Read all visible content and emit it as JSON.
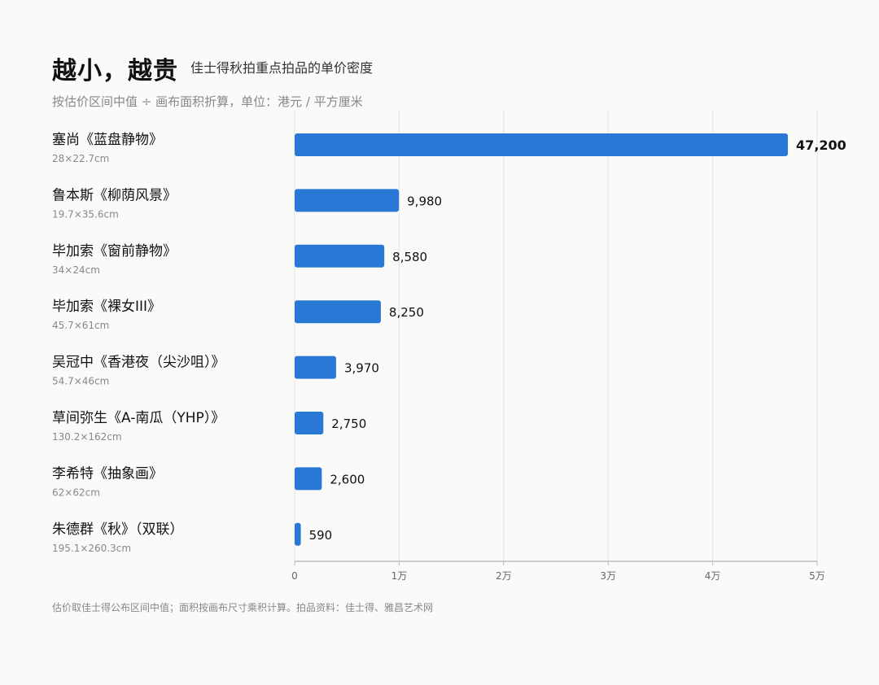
{
  "header": {
    "title": "越小，越贵",
    "subtitle": "佳士得秋拍重点拍品的单价密度",
    "description": "按估价区间中值 ÷ 画布面积折算，单位：港元 / 平方厘米"
  },
  "footnote": "估价取佳士得公布区间中值；面积按画布尺寸乘积计算。拍品资料：佳士得、雅昌艺术网",
  "colors": {
    "bar": "#2a78d6",
    "grid": "#e4e4e2",
    "axis": "#bbbbbb"
  },
  "chart_data": {
    "type": "bar",
    "orientation": "horizontal",
    "categories": [
      "塞尚《蓝盘静物》",
      "鲁本斯《柳荫风景》",
      "毕加索《窗前静物》",
      "毕加索《裸女III》",
      "吴冠中《香港夜（尖沙咀）》",
      "草间弥生《A-南瓜（YHP）》",
      "李希特《抽象画》",
      "朱德群《秋》（双联）"
    ],
    "sizes": [
      "28×22.7cm",
      "19.7×35.6cm",
      "34×24cm",
      "45.7×61cm",
      "54.7×46cm",
      "130.2×162cm",
      "62×62cm",
      "195.1×260.3cm"
    ],
    "values": [
      47200,
      9980,
      8580,
      8250,
      3970,
      2750,
      2600,
      590
    ],
    "value_labels": [
      "47,200",
      "9,980",
      "8,580",
      "8,250",
      "3,970",
      "2,750",
      "2,600",
      "590"
    ],
    "xlim": [
      0,
      50000
    ],
    "xticks": [
      0,
      10000,
      20000,
      30000,
      40000,
      50000
    ],
    "xtick_labels": [
      "0",
      "1万",
      "2万",
      "3万",
      "4万",
      "5万"
    ],
    "grid": true
  }
}
